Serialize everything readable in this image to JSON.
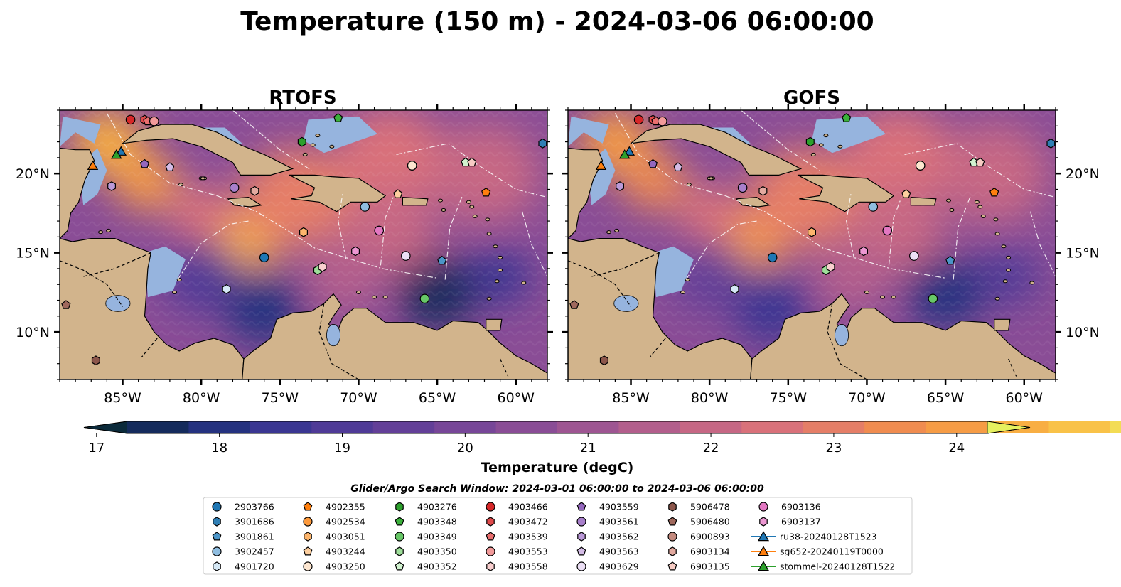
{
  "figure": {
    "suptitle": "Temperature (150 m) - 2024-03-06 06:00:00",
    "colorbar_label": "Temperature (degC)",
    "search_window": "Glider/Argo Search Window: 2024-03-01 06:00:00 to 2024-03-06 06:00:00"
  },
  "chart_data": {
    "type": "heatmap",
    "variable": "Temperature",
    "depth": "150 m",
    "units": "degC",
    "valid_time": "2024-03-06 06:00:00",
    "extent": {
      "lon": [
        -89,
        -58
      ],
      "lat": [
        7,
        24
      ]
    },
    "panels": [
      {
        "title": "RTOFS"
      },
      {
        "title": "GOFS"
      }
    ],
    "x_ticks": [
      {
        "value": -85,
        "label": "85°W"
      },
      {
        "value": -80,
        "label": "80°W"
      },
      {
        "value": -75,
        "label": "75°W"
      },
      {
        "value": -70,
        "label": "70°W"
      },
      {
        "value": -65,
        "label": "65°W"
      },
      {
        "value": -60,
        "label": "60°W"
      }
    ],
    "y_ticks": [
      {
        "value": 20,
        "label": "20°N"
      },
      {
        "value": 15,
        "label": "15°N"
      },
      {
        "value": 10,
        "label": "10°N"
      }
    ],
    "colorbar": {
      "min": 16.75,
      "max": 24.75,
      "step": 0.5,
      "extend": "both",
      "ticks": [
        17,
        18,
        19,
        20,
        21,
        22,
        23,
        24
      ],
      "colors": [
        "#0b2a3a",
        "#142b5c",
        "#24317f",
        "#3a3692",
        "#4f3a97",
        "#633f98",
        "#774698",
        "#8a4d96",
        "#9e5592",
        "#b35e8c",
        "#c66784",
        "#d9717a",
        "#e57e67",
        "#f08c50",
        "#f69c45",
        "#f8ae43",
        "#f9c248",
        "#f3dc54",
        "#e6f05f"
      ]
    },
    "regions": [
      {
        "lon": -86,
        "lat": 22,
        "r": 2.3,
        "value": 24.4
      },
      {
        "lon": -83.5,
        "lat": 19.5,
        "r": 2.0,
        "value": 23.8
      },
      {
        "lon": -77,
        "lat": 16,
        "r": 2.2,
        "value": 24.3
      },
      {
        "lon": -74,
        "lat": 18.5,
        "r": 3.5,
        "value": 23.0
      },
      {
        "lon": -68,
        "lat": 21,
        "r": 3.5,
        "value": 22.5
      },
      {
        "lon": -62,
        "lat": 20,
        "r": 3.5,
        "value": 22.0
      },
      {
        "lon": -68,
        "lat": 16.5,
        "r": 3.0,
        "value": 22.0
      },
      {
        "lon": -80,
        "lat": 13.5,
        "r": 2.5,
        "value": 19.0
      },
      {
        "lon": -76,
        "lat": 11.5,
        "r": 2.5,
        "value": 18.0
      },
      {
        "lon": -65,
        "lat": 12.5,
        "r": 2.5,
        "value": 17.5
      },
      {
        "lon": -61,
        "lat": 13.5,
        "r": 2.0,
        "value": 18.5
      },
      {
        "lon": -80,
        "lat": 17.5,
        "r": 2.0,
        "value": 22.5
      },
      {
        "lon": -71,
        "lat": 13.5,
        "r": 2.5,
        "value": 21.5
      }
    ],
    "legend": {
      "columns": [
        [
          {
            "label": "2903766",
            "marker": "circle",
            "color": "#1f77b4"
          },
          {
            "label": "3901686",
            "marker": "hexagon",
            "color": "#2f7fb5"
          },
          {
            "label": "3901861",
            "marker": "pentagon",
            "color": "#4b95c8"
          },
          {
            "label": "3902457",
            "marker": "circle",
            "color": "#8fbde0"
          },
          {
            "label": "4901720",
            "marker": "hexagon",
            "color": "#d5e8f5"
          }
        ],
        [
          {
            "label": "4902355",
            "marker": "pentagon",
            "color": "#ff7f0e"
          },
          {
            "label": "4902534",
            "marker": "circle",
            "color": "#fd9a3d"
          },
          {
            "label": "4903051",
            "marker": "hexagon",
            "color": "#fdb56c"
          },
          {
            "label": "4903244",
            "marker": "pentagon",
            "color": "#fdcf9f"
          },
          {
            "label": "4903250",
            "marker": "circle",
            "color": "#fde6d0"
          }
        ],
        [
          {
            "label": "4903276",
            "marker": "hexagon",
            "color": "#2ca02c"
          },
          {
            "label": "4903348",
            "marker": "pentagon",
            "color": "#3bb13b"
          },
          {
            "label": "4903349",
            "marker": "circle",
            "color": "#67c767"
          },
          {
            "label": "4903350",
            "marker": "hexagon",
            "color": "#9ede9a"
          },
          {
            "label": "4903352",
            "marker": "pentagon",
            "color": "#d1f2cf"
          }
        ],
        [
          {
            "label": "4903466",
            "marker": "circle",
            "color": "#d62728"
          },
          {
            "label": "4903472",
            "marker": "hexagon",
            "color": "#e04a4b"
          },
          {
            "label": "4903539",
            "marker": "pentagon",
            "color": "#ea6f6f"
          },
          {
            "label": "4903553",
            "marker": "circle",
            "color": "#f29a9a"
          },
          {
            "label": "4903558",
            "marker": "hexagon",
            "color": "#f9cfcf"
          }
        ],
        [
          {
            "label": "4903559",
            "marker": "pentagon",
            "color": "#9467bd"
          },
          {
            "label": "4903561",
            "marker": "circle",
            "color": "#a87fcb"
          },
          {
            "label": "4903562",
            "marker": "hexagon",
            "color": "#bb99d8"
          },
          {
            "label": "4903563",
            "marker": "pentagon",
            "color": "#d4bce6"
          },
          {
            "label": "4903629",
            "marker": "circle",
            "color": "#ecdff5"
          }
        ],
        [
          {
            "label": "5906478",
            "marker": "hexagon",
            "color": "#8c564b"
          },
          {
            "label": "5906480",
            "marker": "pentagon",
            "color": "#a0695d"
          },
          {
            "label": "6900893",
            "marker": "circle",
            "color": "#c48a7e"
          },
          {
            "label": "6903134",
            "marker": "hexagon",
            "color": "#e3aaa0"
          },
          {
            "label": "6903135",
            "marker": "pentagon",
            "color": "#f7ccc4"
          }
        ],
        [
          {
            "label": "6903136",
            "marker": "circle",
            "color": "#e377c2"
          },
          {
            "label": "6903137",
            "marker": "hexagon",
            "color": "#ec97d2"
          },
          {
            "label": "ru38-20240128T1523",
            "marker": "triangle-line",
            "color": "#1f77b4"
          },
          {
            "label": "sg652-20240119T0000",
            "marker": "triangle-line",
            "color": "#ff7f0e"
          },
          {
            "label": "stommel-20240128T1522",
            "marker": "triangle-line",
            "color": "#2ca02c"
          }
        ]
      ]
    },
    "points": [
      {
        "id": "2903766",
        "lon": -76,
        "lat": 14.7,
        "marker": "circle",
        "color": "#1f77b4"
      },
      {
        "id": "3901686",
        "lon": -58.3,
        "lat": 21.9,
        "marker": "hexagon",
        "color": "#2f7fb5"
      },
      {
        "id": "3901861",
        "lon": -64.7,
        "lat": 14.5,
        "marker": "pentagon",
        "color": "#4b95c8"
      },
      {
        "id": "3902457",
        "lon": -69.6,
        "lat": 17.9,
        "marker": "circle",
        "color": "#8fbde0"
      },
      {
        "id": "4901720",
        "lon": -78.4,
        "lat": 12.7,
        "marker": "hexagon",
        "color": "#d5e8f5"
      },
      {
        "id": "4902355",
        "lon": -61.9,
        "lat": 18.8,
        "marker": "pentagon",
        "color": "#ff7f0e"
      },
      {
        "id": "4902534",
        "lon": -66.6,
        "lat": 20.5,
        "marker": "circle",
        "color": "#fd9a3d"
      },
      {
        "id": "4903051",
        "lon": -73.5,
        "lat": 16.3,
        "marker": "hexagon",
        "color": "#fdb56c"
      },
      {
        "id": "4903244",
        "lon": -67.5,
        "lat": 18.7,
        "marker": "pentagon",
        "color": "#fdcf9f"
      },
      {
        "id": "4903250",
        "lon": -66.6,
        "lat": 20.5,
        "marker": "circle",
        "color": "#fde6d0"
      },
      {
        "id": "4903276",
        "lon": -73.6,
        "lat": 22.0,
        "marker": "hexagon",
        "color": "#2ca02c"
      },
      {
        "id": "4903348",
        "lon": -71.3,
        "lat": 23.5,
        "marker": "pentagon",
        "color": "#3bb13b"
      },
      {
        "id": "4903349",
        "lon": -65.8,
        "lat": 12.1,
        "marker": "circle",
        "color": "#67c767"
      },
      {
        "id": "4903350",
        "lon": -72.6,
        "lat": 13.9,
        "marker": "hexagon",
        "color": "#9ede9a"
      },
      {
        "id": "4903352",
        "lon": -63.2,
        "lat": 20.7,
        "marker": "pentagon",
        "color": "#d1f2cf"
      },
      {
        "id": "4903466",
        "lon": -84.5,
        "lat": 23.4,
        "marker": "circle",
        "color": "#d62728"
      },
      {
        "id": "4903472",
        "lon": -83.6,
        "lat": 23.4,
        "marker": "hexagon",
        "color": "#e04a4b"
      },
      {
        "id": "4903539",
        "lon": -83.4,
        "lat": 23.3,
        "marker": "pentagon",
        "color": "#ea6f6f"
      },
      {
        "id": "4903553",
        "lon": -83.0,
        "lat": 23.3,
        "marker": "circle",
        "color": "#f29a9a"
      },
      {
        "id": "4903558",
        "lon": -72.3,
        "lat": 14.1,
        "marker": "hexagon",
        "color": "#f9cfcf"
      },
      {
        "id": "4903559",
        "lon": -83.6,
        "lat": 20.6,
        "marker": "pentagon",
        "color": "#9467bd"
      },
      {
        "id": "4903561",
        "lon": -77.9,
        "lat": 19.1,
        "marker": "circle",
        "color": "#a87fcb"
      },
      {
        "id": "4903562",
        "lon": -85.7,
        "lat": 19.2,
        "marker": "hexagon",
        "color": "#bb99d8"
      },
      {
        "id": "4903563",
        "lon": -82.0,
        "lat": 20.4,
        "marker": "pentagon",
        "color": "#d4bce6"
      },
      {
        "id": "4903629",
        "lon": -67.0,
        "lat": 14.8,
        "marker": "circle",
        "color": "#ecdff5"
      },
      {
        "id": "5906478",
        "lon": -86.7,
        "lat": 8.2,
        "marker": "hexagon",
        "color": "#8c564b"
      },
      {
        "id": "5906480",
        "lon": -88.6,
        "lat": 11.7,
        "marker": "pentagon",
        "color": "#a0695d"
      },
      {
        "id": "6903136",
        "lon": -68.7,
        "lat": 16.4,
        "marker": "circle",
        "color": "#e377c2"
      },
      {
        "id": "6903137",
        "lon": -70.2,
        "lat": 15.1,
        "marker": "hexagon",
        "color": "#ec97d2"
      },
      {
        "id": "6903135",
        "lon": -62.8,
        "lat": 20.7,
        "marker": "pentagon",
        "color": "#f7ccc4"
      },
      {
        "id": "6903134",
        "lon": -76.6,
        "lat": 18.9,
        "marker": "hexagon",
        "color": "#e3aaa0"
      },
      {
        "id": "ru38-20240128T1523",
        "lon": -85.1,
        "lat": 21.4,
        "marker": "triangle",
        "color": "#1f77b4"
      },
      {
        "id": "sg652-20240119T0000",
        "lon": -86.9,
        "lat": 20.5,
        "marker": "triangle",
        "color": "#ff7f0e"
      },
      {
        "id": "stommel-20240128T1522",
        "lon": -85.4,
        "lat": 21.2,
        "marker": "triangle",
        "color": "#2ca02c"
      }
    ]
  }
}
